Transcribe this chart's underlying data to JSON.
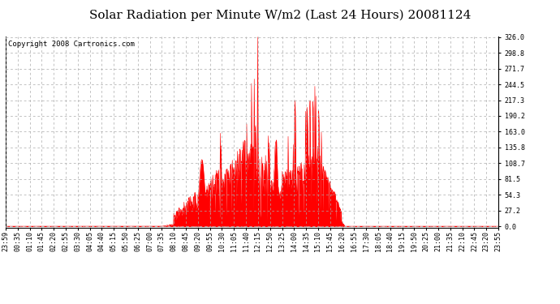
{
  "title": "Solar Radiation per Minute W/m2 (Last 24 Hours) 20081124",
  "copyright_text": "Copyright 2008 Cartronics.com",
  "y_max": 326.0,
  "y_min": 0.0,
  "ytick_values": [
    0.0,
    27.2,
    54.3,
    81.5,
    108.7,
    135.8,
    163.0,
    190.2,
    217.3,
    244.5,
    271.7,
    298.8,
    326.0
  ],
  "fill_color": "#FF0000",
  "line_color": "#FF0000",
  "bg_color": "#FFFFFF",
  "grid_color": "#AAAAAA",
  "dashed_line_color": "#FF0000",
  "title_fontsize": 11,
  "copyright_fontsize": 6.5,
  "tick_fontsize": 6,
  "xlabel_rotation": 90,
  "x_labels": [
    "23:59",
    "00:35",
    "01:10",
    "01:45",
    "02:20",
    "02:55",
    "03:30",
    "04:05",
    "04:40",
    "05:15",
    "05:50",
    "06:25",
    "07:00",
    "07:35",
    "08:10",
    "08:45",
    "09:20",
    "09:55",
    "10:30",
    "11:05",
    "11:40",
    "12:15",
    "12:50",
    "13:25",
    "14:00",
    "14:35",
    "15:10",
    "15:45",
    "16:20",
    "16:55",
    "17:30",
    "18:05",
    "18:40",
    "19:15",
    "19:50",
    "20:25",
    "21:00",
    "21:35",
    "22:10",
    "22:45",
    "23:20",
    "23:55"
  ],
  "n_points": 1440
}
